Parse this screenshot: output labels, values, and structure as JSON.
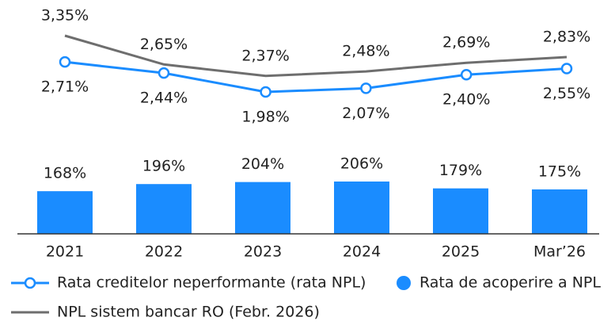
{
  "chart_data": [
    {
      "type": "line",
      "series": [
        {
          "name": "Rata creditelor neperformante (rata NPL)",
          "color": "#1a8cff",
          "marker": "circle",
          "values": [
            2.71,
            2.44,
            1.98,
            2.07,
            2.4,
            2.55
          ],
          "value_labels": [
            "2,71%",
            "2,44%",
            "1,98%",
            "2,07%",
            "2,40%",
            "2,55%"
          ]
        },
        {
          "name": "NPL sistem bancar RO (Febr. 2026)",
          "color": "#6e6e6e",
          "values": [
            3.35,
            2.65,
            2.37,
            2.48,
            2.69,
            2.83
          ],
          "value_labels": [
            "3,35%",
            "2,65%",
            "2,37%",
            "2,48%",
            "2,69%",
            "2,83%"
          ]
        }
      ]
    },
    {
      "type": "bar",
      "categories": [
        "2021",
        "2022",
        "2023",
        "2024",
        "2025",
        "Mar’26"
      ],
      "series": [
        {
          "name": "Rata de acoperire a NPL",
          "color": "#1a8cff",
          "values": [
            168,
            196,
            204,
            206,
            179,
            175
          ],
          "value_labels": [
            "168%",
            "196%",
            "204%",
            "206%",
            "179%",
            "175%"
          ]
        }
      ]
    }
  ]
}
